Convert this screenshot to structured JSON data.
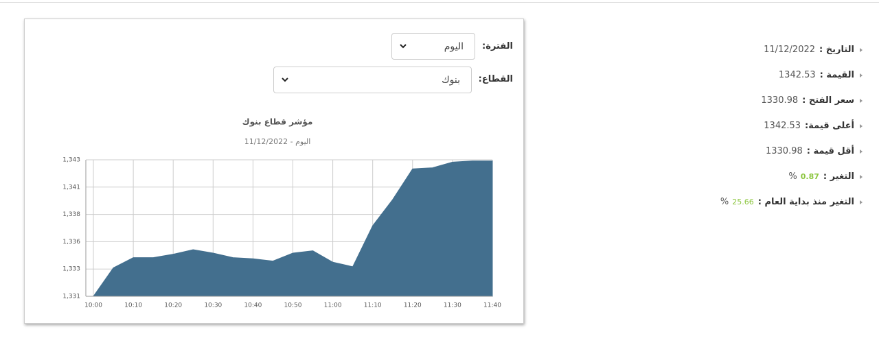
{
  "filters": [
    {
      "label": "الفترة:",
      "value": "اليوم"
    },
    {
      "label": "القطاع:",
      "value": "بنوك"
    }
  ],
  "info": [
    {
      "label": "التاريخ :",
      "value": "11/12/2022"
    },
    {
      "label": "القيمة :",
      "value": "1342.53"
    },
    {
      "label": "سعر الفتح :",
      "value": "1330.98"
    },
    {
      "label": "أعلى قيمة:",
      "value": "1342.53"
    },
    {
      "label": "أقل قيمة :",
      "value": "1330.98"
    },
    {
      "label": "التغير :",
      "value": "0.87",
      "unit": "%"
    },
    {
      "label": "التغير منذ بداية العام :",
      "value": "25.66",
      "unit": "%"
    }
  ],
  "chart_data": {
    "type": "area",
    "title": "مؤشر قطاع بنوك",
    "subtitle": "اليوم - 11/12/2022",
    "categories": [
      "10:00",
      null,
      "10:10",
      null,
      "10:20",
      null,
      "10:30",
      null,
      "10:40",
      null,
      "10:50",
      null,
      "11:00",
      null,
      "11:10",
      null,
      "11:20",
      null,
      "11:30",
      null,
      "11:40"
    ],
    "values": [
      1331.0,
      1333.5,
      1334.4,
      1334.4,
      1334.7,
      1335.1,
      1334.8,
      1334.4,
      1334.3,
      1334.1,
      1334.8,
      1335.0,
      1334.0,
      1333.6,
      1337.2,
      1339.5,
      1342.2,
      1342.3,
      1342.8,
      1342.9,
      1342.9
    ],
    "color": "#436f8e",
    "ylim": [
      1331,
      1343
    ],
    "yticks": [
      {
        "value": 1331,
        "label": "1,331"
      },
      {
        "value": 1333.4,
        "label": "1,333"
      },
      {
        "value": 1335.8,
        "label": "1,336"
      },
      {
        "value": 1338.2,
        "label": "1,338"
      },
      {
        "value": 1340.6,
        "label": "1,341"
      },
      {
        "value": 1343,
        "label": "1,343"
      }
    ],
    "grid": true
  }
}
